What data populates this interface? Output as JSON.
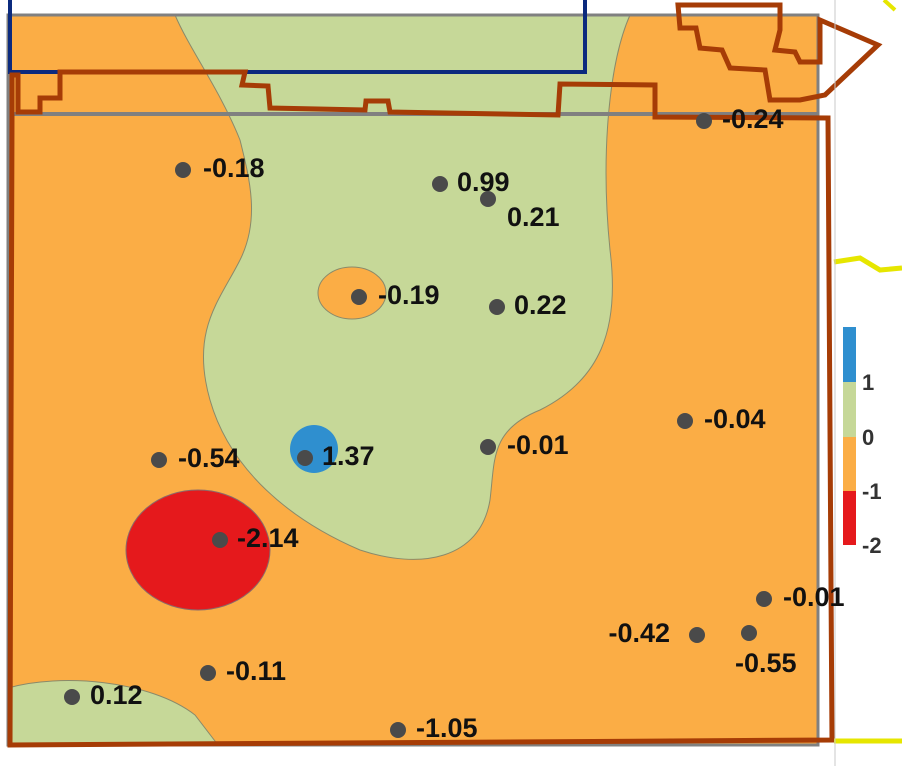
{
  "points": [
    {
      "label": "-0.24"
    },
    {
      "label": "-0.18"
    },
    {
      "label": "0.99"
    },
    {
      "label": "0.21"
    },
    {
      "label": "-0.19"
    },
    {
      "label": "0.22"
    },
    {
      "label": "-0.04"
    },
    {
      "label": "-0.01"
    },
    {
      "label": "1.37"
    },
    {
      "label": "-0.54"
    },
    {
      "label": "-2.14"
    },
    {
      "label": "-0.01"
    },
    {
      "label": "-0.42"
    },
    {
      "label": "-0.55"
    },
    {
      "label": "-0.11"
    },
    {
      "label": "0.12"
    },
    {
      "label": "-1.05"
    }
  ],
  "legend": {
    "labels": [
      "1",
      "0",
      "-1",
      "-2"
    ]
  }
}
